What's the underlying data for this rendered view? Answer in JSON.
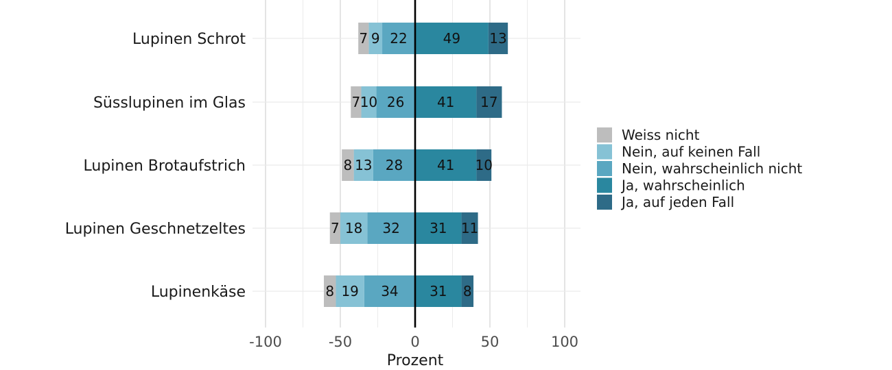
{
  "chart_data": {
    "type": "bar",
    "orientation": "horizontal",
    "stacking": "diverging",
    "title": "",
    "xlabel": "Prozent",
    "ylabel": "",
    "xlim": [
      -100,
      100
    ],
    "xticks": [
      -100,
      -50,
      0,
      50,
      100
    ],
    "xtick_labels": [
      "-100",
      "-50",
      "0",
      "50",
      "100"
    ],
    "grid": true,
    "legend_position": "right",
    "categories": [
      "Lupinen Schrot",
      "Süsslupinen im Glas",
      "Lupinen Brotaufstrich",
      "Lupinen Geschnetzeltes",
      "Lupinenkäse"
    ],
    "series": [
      {
        "name": "Weiss nicht",
        "side": "negative",
        "color": "#bdbdbd",
        "values": [
          7,
          7,
          8,
          7,
          8
        ]
      },
      {
        "name": "Nein, auf keinen Fall",
        "side": "negative",
        "color": "#86c2d5",
        "values": [
          9,
          10,
          13,
          18,
          19
        ]
      },
      {
        "name": "Nein, wahrscheinlich nicht",
        "side": "negative",
        "color": "#5aa7c1",
        "values": [
          22,
          26,
          28,
          32,
          34
        ]
      },
      {
        "name": "Ja, wahrscheinlich",
        "side": "positive",
        "color": "#2a879f",
        "values": [
          49,
          41,
          41,
          31,
          31
        ]
      },
      {
        "name": "Ja, auf jeden Fall",
        "side": "positive",
        "color": "#2e6b87",
        "values": [
          13,
          17,
          10,
          11,
          8
        ]
      }
    ]
  }
}
